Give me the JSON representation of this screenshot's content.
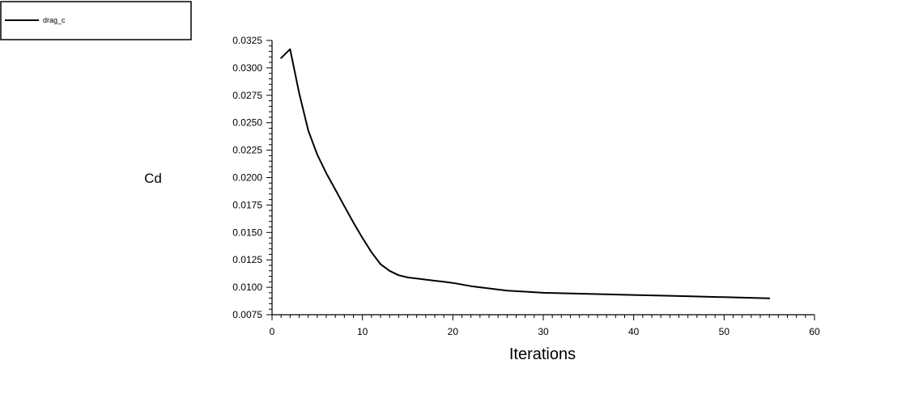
{
  "chart_data": {
    "type": "line",
    "title": "",
    "xlabel": "Iterations",
    "ylabel": "Cd",
    "xlim": [
      0,
      60
    ],
    "ylim": [
      0.0075,
      0.0325
    ],
    "x_ticks": [
      "0",
      "10",
      "20",
      "30",
      "40",
      "50",
      "60"
    ],
    "y_ticks": [
      "0.0075",
      "0.0100",
      "0.0125",
      "0.0150",
      "0.0175",
      "0.0200",
      "0.0225",
      "0.0250",
      "0.0275",
      "0.0300",
      "0.0325"
    ],
    "grid": false,
    "legend_position": "top-left",
    "series": [
      {
        "name": "drag_c",
        "color": "#000000",
        "x": [
          1,
          2,
          3,
          4,
          5,
          6,
          7,
          8,
          9,
          10,
          11,
          12,
          13,
          14,
          15,
          16,
          17,
          18,
          19,
          20,
          22,
          24,
          26,
          28,
          30,
          35,
          40,
          45,
          50,
          55
        ],
        "y": [
          0.0309,
          0.0317,
          0.0277,
          0.0243,
          0.0221,
          0.0204,
          0.0189,
          0.0174,
          0.0159,
          0.0145,
          0.0132,
          0.0121,
          0.0115,
          0.0111,
          0.0109,
          0.0108,
          0.0107,
          0.0106,
          0.0105,
          0.0104,
          0.0101,
          0.0099,
          0.0097,
          0.0096,
          0.0095,
          0.0094,
          0.0093,
          0.0092,
          0.0091,
          0.009
        ]
      }
    ]
  }
}
